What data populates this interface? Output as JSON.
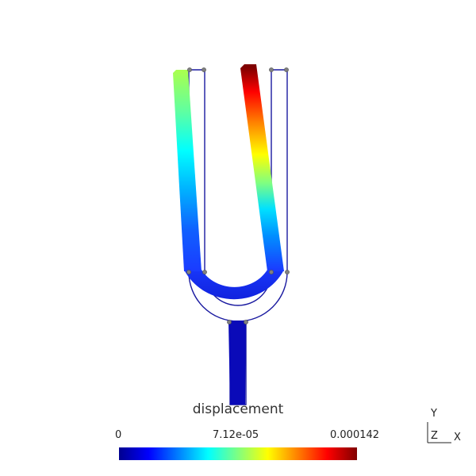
{
  "colorbar": {
    "title": "displacement",
    "tick_min": "0",
    "tick_mid": "7.12e-05",
    "tick_max": "0.000142",
    "colormap": [
      "#00008f",
      "#0000ff",
      "#0080ff",
      "#00ffff",
      "#80ff80",
      "#ffff00",
      "#ff8000",
      "#ff0000",
      "#800000"
    ]
  },
  "axes": {
    "y_label": "Y",
    "z_label": "Z",
    "x_label": "X"
  },
  "colors": {
    "undeformed_outline": "#1a1aa0",
    "node_marker": "#808080",
    "background": "#ffffff"
  }
}
